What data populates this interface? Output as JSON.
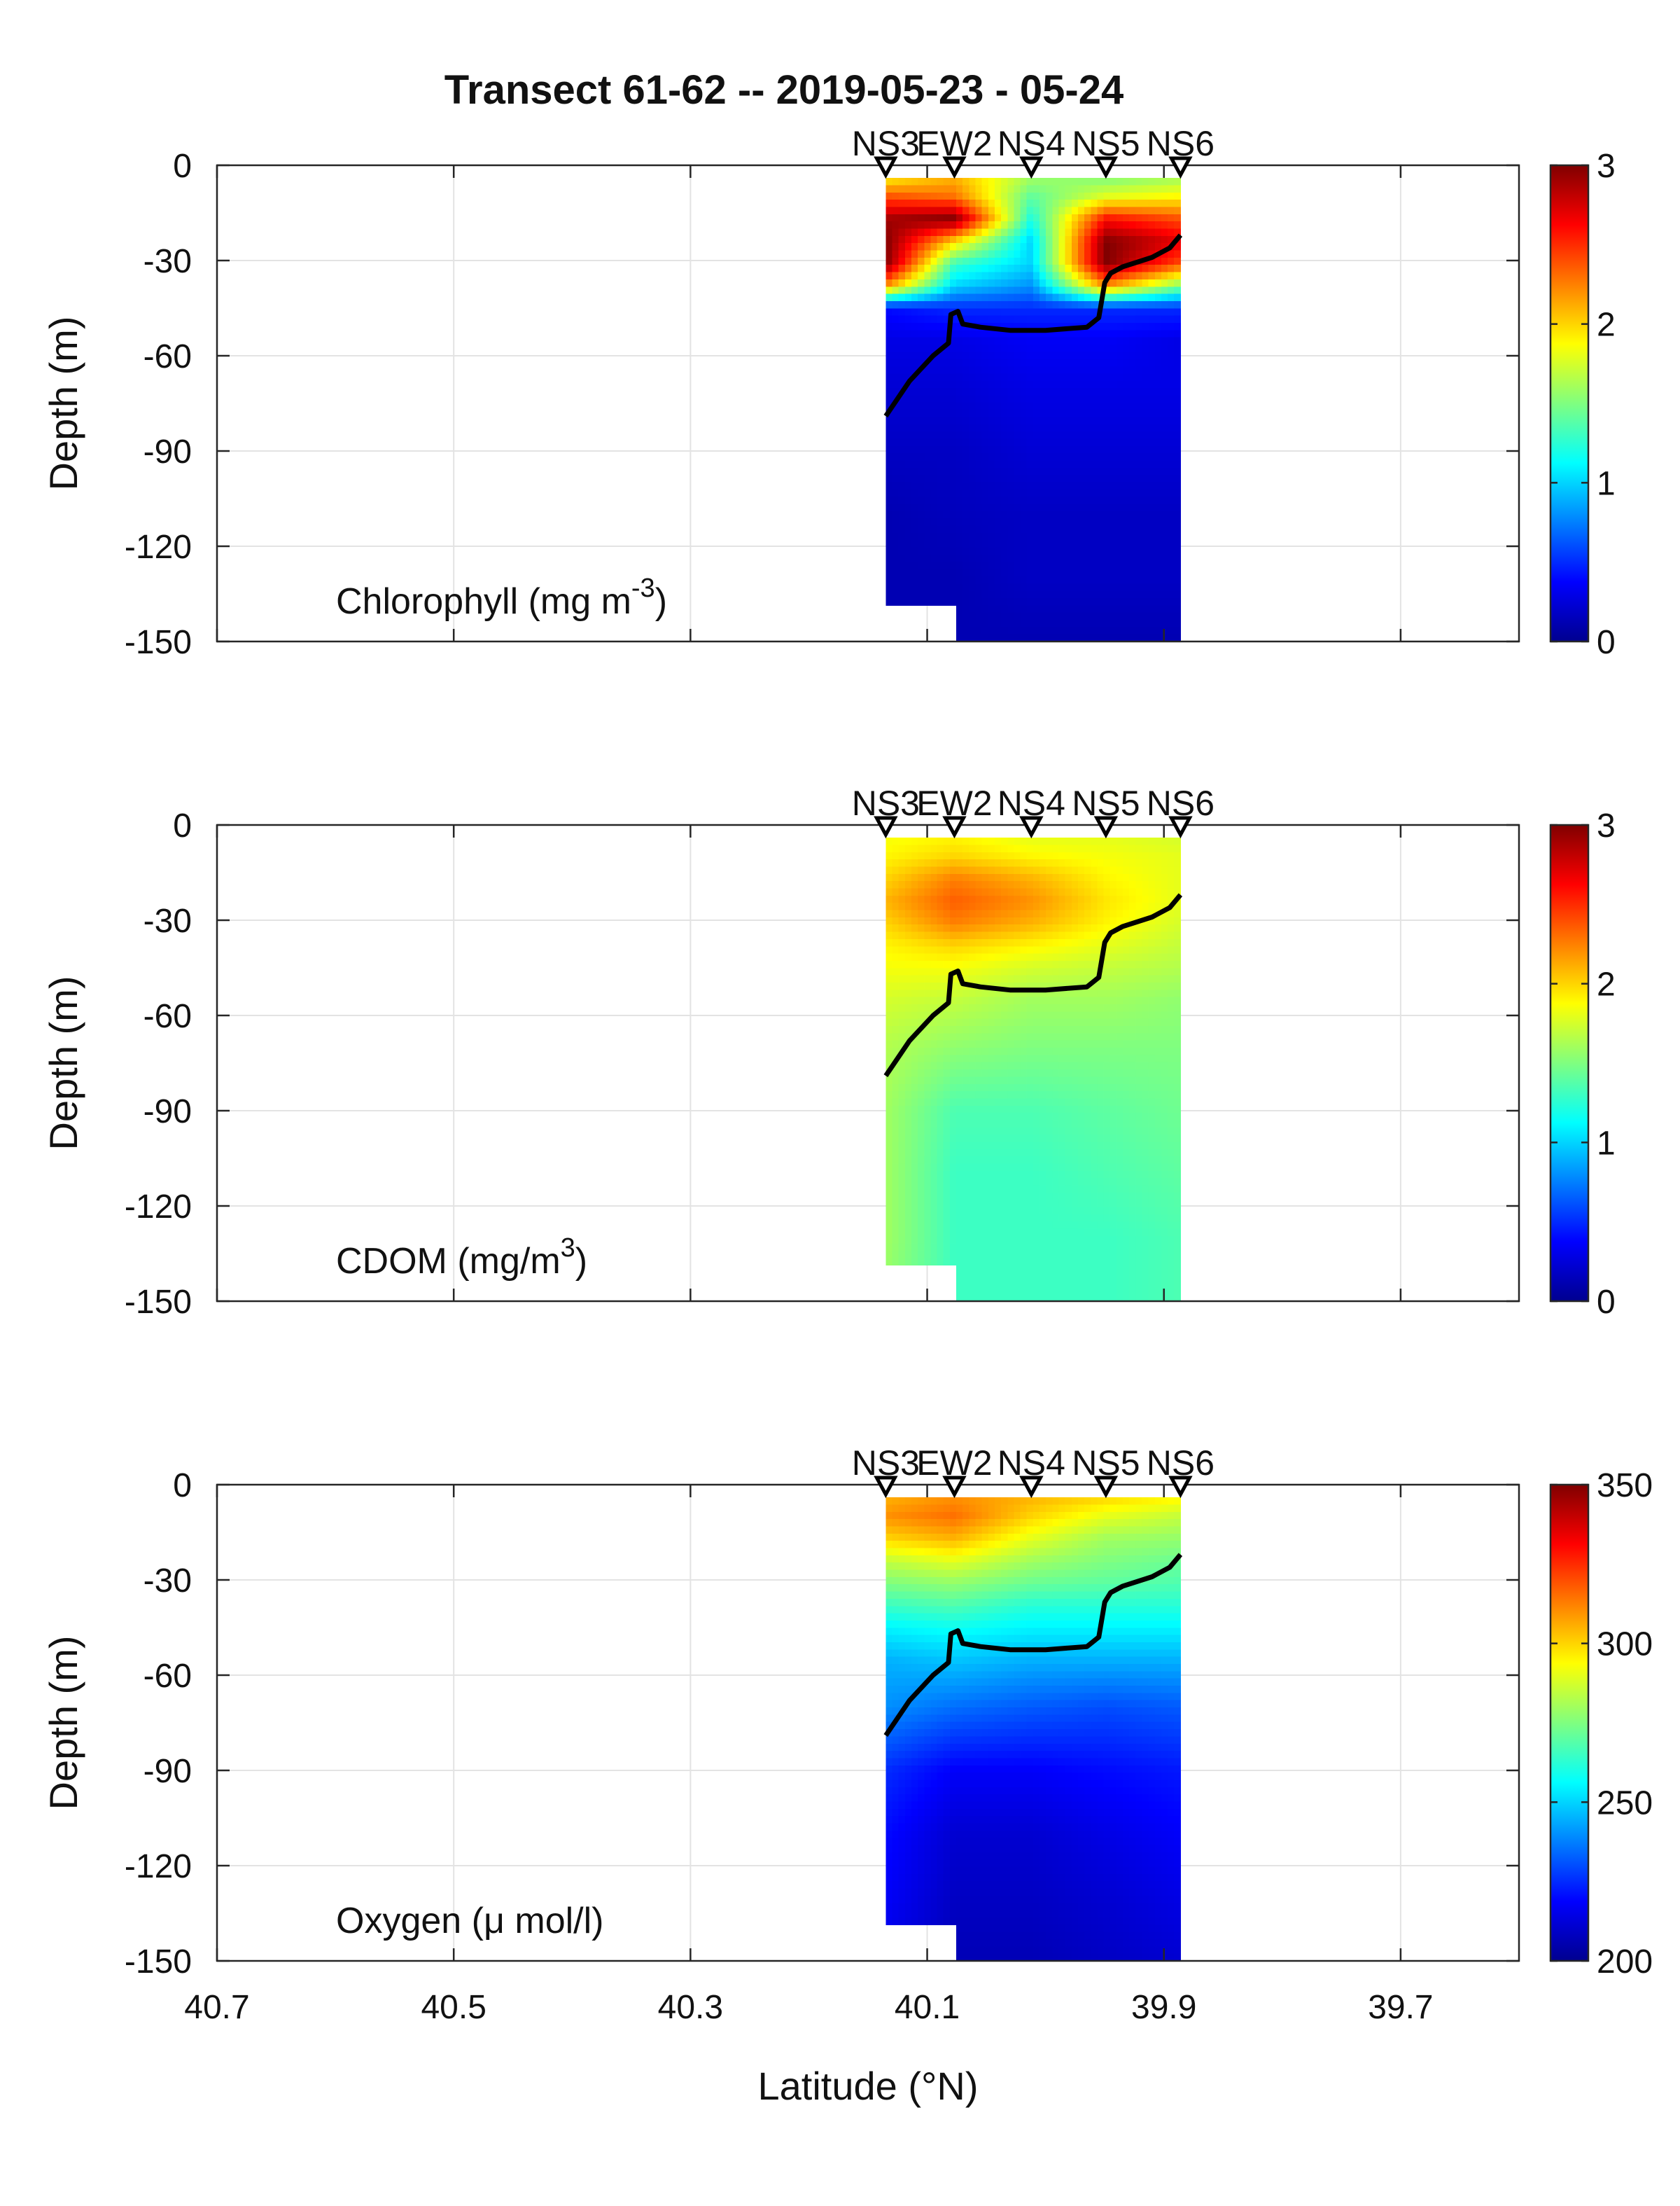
{
  "title": "Transect 61-62 -- 2019-05-23 - 05-24",
  "xlabel": "Latitude (°N)",
  "chart_data": {
    "type": "heatmap",
    "title": "Transect 61-62 -- 2019-05-23 - 05-24",
    "xlabel": "Latitude (°N)",
    "x_ticks": [
      40.7,
      40.5,
      40.3,
      40.1,
      39.9,
      39.7
    ],
    "xlim": [
      40.7,
      39.6
    ],
    "x_direction": "reversed",
    "grid": true,
    "stations": [
      {
        "name": "NS3",
        "lat": 40.135
      },
      {
        "name": "EW2",
        "lat": 40.077
      },
      {
        "name": "NS4",
        "lat": 40.012
      },
      {
        "name": "NS5",
        "lat": 39.949
      },
      {
        "name": "NS6",
        "lat": 39.886
      }
    ],
    "data_extent": {
      "lat": [
        40.135,
        39.886
      ],
      "depth": [
        -4,
        -150
      ]
    },
    "mixed_layer_depth_line": [
      {
        "lat": 40.135,
        "depth": -79
      },
      {
        "lat": 40.115,
        "depth": -68
      },
      {
        "lat": 40.095,
        "depth": -60
      },
      {
        "lat": 40.082,
        "depth": -56
      },
      {
        "lat": 40.08,
        "depth": -47
      },
      {
        "lat": 40.074,
        "depth": -46
      },
      {
        "lat": 40.07,
        "depth": -50
      },
      {
        "lat": 40.055,
        "depth": -51
      },
      {
        "lat": 40.03,
        "depth": -52
      },
      {
        "lat": 40.0,
        "depth": -52
      },
      {
        "lat": 39.965,
        "depth": -51
      },
      {
        "lat": 39.955,
        "depth": -48
      },
      {
        "lat": 39.95,
        "depth": -37
      },
      {
        "lat": 39.945,
        "depth": -34
      },
      {
        "lat": 39.935,
        "depth": -32
      },
      {
        "lat": 39.91,
        "depth": -29
      },
      {
        "lat": 39.895,
        "depth": -26
      },
      {
        "lat": 39.886,
        "depth": -22
      }
    ],
    "panels": [
      {
        "label": "Chlorophyll (mg m-3)",
        "label_main": "Chlorophyll (mg m",
        "label_sup": "-3",
        "label_end": ")",
        "ylabel": "Depth (m)",
        "ylim": [
          -150,
          0
        ],
        "y_ticks": [
          "0",
          "-30",
          "-60",
          "-90",
          "-120",
          "-150"
        ],
        "colorbar_ticks": [
          "3",
          "2",
          "1",
          "0"
        ],
        "colorbar_range": [
          0,
          3
        ],
        "profile_depths": [
          -4,
          -10,
          -17,
          -24,
          -31,
          -38,
          -45,
          -55,
          -70,
          -90,
          -110,
          -130,
          -150
        ],
        "profiles": [
          [
            1.9,
            2.4,
            2.9,
            3.0,
            3.0,
            2.2,
            0.4,
            0.3,
            0.25,
            0.2,
            0.15,
            0.15,
            0.15
          ],
          [
            2.1,
            2.3,
            3.0,
            2.0,
            1.3,
            1.0,
            0.5,
            0.3,
            0.25,
            0.2,
            0.18,
            0.15,
            0.15
          ],
          [
            1.6,
            1.4,
            1.2,
            1.0,
            1.0,
            0.8,
            0.5,
            0.35,
            0.3,
            0.25,
            0.2,
            0.2,
            0.15
          ],
          [
            1.5,
            1.8,
            2.6,
            3.0,
            3.0,
            2.2,
            0.5,
            0.35,
            0.3,
            0.25,
            0.2,
            0.2,
            0.15
          ],
          [
            1.6,
            1.9,
            2.4,
            2.7,
            2.4,
            1.5,
            0.5,
            0.3,
            0.3,
            0.25,
            0.2,
            0.2,
            0.15
          ]
        ]
      },
      {
        "label": "CDOM (mg/m3)",
        "label_main": "CDOM (mg/m",
        "label_sup": "3",
        "label_end": ")",
        "ylabel": "Depth (m)",
        "ylim": [
          -150,
          0
        ],
        "y_ticks": [
          "0",
          "-30",
          "-60",
          "-90",
          "-120",
          "-150"
        ],
        "colorbar_ticks": [
          "3",
          "2",
          "1",
          "0"
        ],
        "colorbar_range": [
          0,
          3
        ],
        "profile_depths": [
          -4,
          -10,
          -17,
          -24,
          -31,
          -38,
          -45,
          -55,
          -70,
          -90,
          -110,
          -130,
          -150
        ],
        "profiles": [
          [
            1.85,
            1.9,
            2.0,
            2.1,
            2.0,
            1.9,
            1.85,
            1.75,
            1.65,
            1.6,
            1.6,
            1.6,
            1.55
          ],
          [
            1.9,
            2.0,
            2.25,
            2.35,
            2.25,
            2.0,
            1.85,
            1.7,
            1.55,
            1.35,
            1.3,
            1.3,
            1.3
          ],
          [
            1.8,
            1.9,
            2.1,
            2.2,
            2.1,
            1.9,
            1.75,
            1.6,
            1.5,
            1.35,
            1.3,
            1.3,
            1.3
          ],
          [
            1.8,
            1.85,
            1.9,
            1.95,
            1.9,
            1.8,
            1.7,
            1.6,
            1.5,
            1.4,
            1.35,
            1.3,
            1.3
          ],
          [
            1.75,
            1.8,
            1.8,
            1.8,
            1.75,
            1.7,
            1.65,
            1.55,
            1.5,
            1.45,
            1.4,
            1.35,
            1.35
          ]
        ]
      },
      {
        "label": "Oxygen (μ mol/l)",
        "label_main": "Oxygen (μ mol/l)",
        "label_sup": "",
        "label_end": "",
        "ylabel": "Depth (m)",
        "ylim": [
          -150,
          0
        ],
        "y_ticks": [
          "0",
          "-30",
          "-60",
          "-90",
          "-120",
          "-150"
        ],
        "colorbar_ticks": [
          "350",
          "300",
          "250",
          "200"
        ],
        "colorbar_range": [
          200,
          350
        ],
        "profile_depths": [
          -4,
          -10,
          -17,
          -24,
          -31,
          -38,
          -45,
          -55,
          -70,
          -90,
          -110,
          -130,
          -150
        ],
        "profiles": [
          [
            305,
            310,
            300,
            285,
            275,
            265,
            255,
            245,
            240,
            225,
            220,
            218,
            215
          ],
          [
            310,
            315,
            305,
            290,
            278,
            268,
            258,
            248,
            235,
            218,
            212,
            210,
            208
          ],
          [
            305,
            300,
            290,
            280,
            272,
            262,
            255,
            245,
            232,
            218,
            212,
            210,
            208
          ],
          [
            300,
            290,
            280,
            275,
            270,
            262,
            255,
            245,
            230,
            220,
            215,
            212,
            210
          ],
          [
            295,
            285,
            278,
            272,
            268,
            262,
            255,
            245,
            232,
            222,
            218,
            215,
            212
          ]
        ]
      }
    ]
  }
}
